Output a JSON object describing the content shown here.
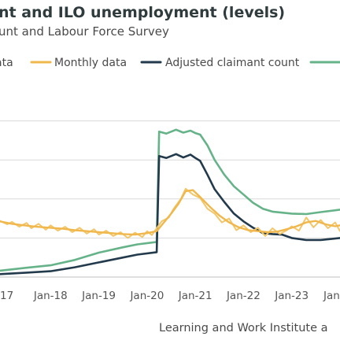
{
  "colors": {
    "weekly": "#f2c66b",
    "monthly": "#f0b84c",
    "adjusted": "#223a4b",
    "ilo": "#66b38a",
    "grid": "#d9d9d9",
    "axis": "#bfbfbf"
  },
  "chart_data": {
    "type": "line",
    "title": "nt and ILO unemployment (levels)",
    "subtitle": "unt and Labour Force Survey",
    "source": "Learning and Work Institute a",
    "legend_position": "top",
    "grid": true,
    "x_tick_labels": [
      "17",
      "Jan-18",
      "Jan-19",
      "Jan-20",
      "Jan-21",
      "Jan-22",
      "Jan-23",
      "Jan"
    ],
    "x_tick_values": [
      2017.0,
      2018.0,
      2019.0,
      2020.0,
      2021.0,
      2022.0,
      2023.0,
      2024.0
    ],
    "xlim": [
      2016.95,
      2024.0
    ],
    "ylim": [
      0.4,
      2.4
    ],
    "y_gridlines": [
      0.8,
      1.2,
      1.6,
      2.0
    ],
    "legend": [
      {
        "label": "ata",
        "key": "weekly"
      },
      {
        "label": "Monthly data",
        "key": "monthly"
      },
      {
        "label": "Adjusted claimant count",
        "key": "adjusted"
      },
      {
        "label": "",
        "key": "ilo"
      }
    ],
    "series": [
      {
        "key": "ilo",
        "x": [
          2016.95,
          2017.5,
          2018.0,
          2018.5,
          2019.0,
          2019.5,
          2019.8,
          2020.2,
          2020.25,
          2020.4,
          2020.6,
          2020.75,
          2020.9,
          2021.0,
          2021.1,
          2021.25,
          2021.4,
          2021.6,
          2021.8,
          2022.0,
          2022.2,
          2022.4,
          2022.6,
          2022.8,
          2023.0,
          2023.3,
          2023.6,
          2024.0
        ],
        "y": [
          0.465,
          0.495,
          0.52,
          0.575,
          0.65,
          0.705,
          0.735,
          0.76,
          1.89,
          1.87,
          1.91,
          1.88,
          1.9,
          1.875,
          1.86,
          1.75,
          1.6,
          1.45,
          1.33,
          1.245,
          1.16,
          1.1,
          1.07,
          1.06,
          1.05,
          1.045,
          1.065,
          1.09
        ]
      },
      {
        "key": "adjusted",
        "x": [
          2016.95,
          2017.5,
          2018.0,
          2018.5,
          2019.0,
          2019.5,
          2019.8,
          2020.2,
          2020.25,
          2020.4,
          2020.6,
          2020.75,
          2020.9,
          2021.0,
          2021.1,
          2021.25,
          2021.4,
          2021.6,
          2021.8,
          2022.0,
          2022.2,
          2022.4,
          2022.6,
          2022.8,
          2023.0,
          2023.3,
          2023.6,
          2024.0
        ],
        "y": [
          0.43,
          0.445,
          0.46,
          0.5,
          0.55,
          0.6,
          0.63,
          0.655,
          1.64,
          1.62,
          1.66,
          1.625,
          1.655,
          1.62,
          1.59,
          1.45,
          1.3,
          1.17,
          1.05,
          0.97,
          0.905,
          0.85,
          0.84,
          0.835,
          0.8,
          0.78,
          0.78,
          0.8
        ]
      },
      {
        "key": "weekly",
        "x": [
          2016.95,
          2017.1,
          2017.2,
          2017.35,
          2017.5,
          2017.6,
          2017.75,
          2017.9,
          2018.0,
          2018.15,
          2018.3,
          2018.45,
          2018.6,
          2018.75,
          2018.9,
          2019.0,
          2019.15,
          2019.3,
          2019.45,
          2019.6,
          2019.75,
          2019.9,
          2020.0,
          2020.1,
          2020.2,
          2020.3,
          2020.45,
          2020.55,
          2020.7,
          2020.8,
          2020.95,
          2021.1,
          2021.25,
          2021.4,
          2021.55,
          2021.7,
          2021.85,
          2022.0,
          2022.15,
          2022.3,
          2022.45,
          2022.6,
          2022.75,
          2022.9,
          2023.0,
          2023.15,
          2023.3,
          2023.45,
          2023.6,
          2023.75,
          2023.9,
          2024.0
        ],
        "y": [
          0.975,
          0.94,
          0.965,
          0.915,
          0.955,
          0.9,
          0.945,
          0.885,
          0.93,
          0.875,
          0.915,
          0.86,
          0.905,
          0.845,
          0.89,
          0.835,
          0.875,
          0.82,
          0.86,
          0.8,
          0.855,
          0.81,
          0.87,
          0.83,
          0.9,
          0.97,
          1.01,
          1.1,
          1.2,
          1.305,
          1.245,
          1.21,
          1.1,
          1.05,
          0.96,
          1.0,
          0.88,
          0.93,
          0.86,
          0.905,
          0.82,
          0.9,
          0.84,
          0.88,
          0.92,
          0.875,
          1.01,
          0.91,
          0.985,
          0.9,
          0.96,
          0.87
        ]
      },
      {
        "key": "monthly",
        "x": [
          2016.95,
          2017.2,
          2017.45,
          2017.7,
          2018.0,
          2018.25,
          2018.5,
          2018.75,
          2019.0,
          2019.25,
          2019.5,
          2019.75,
          2020.0,
          2020.2,
          2020.35,
          2020.5,
          2020.65,
          2020.8,
          2020.95,
          2021.1,
          2021.3,
          2021.5,
          2021.7,
          2021.9,
          2022.1,
          2022.3,
          2022.5,
          2022.7,
          2022.9,
          2023.1,
          2023.3,
          2023.5,
          2023.7,
          2023.9,
          2024.0
        ],
        "y": [
          0.97,
          0.945,
          0.93,
          0.915,
          0.905,
          0.895,
          0.88,
          0.87,
          0.86,
          0.85,
          0.84,
          0.835,
          0.85,
          0.87,
          0.96,
          1.05,
          1.15,
          1.28,
          1.29,
          1.22,
          1.12,
          1.03,
          0.96,
          0.91,
          0.88,
          0.87,
          0.86,
          0.865,
          0.89,
          0.92,
          0.96,
          0.975,
          0.94,
          0.92,
          0.93
        ]
      }
    ]
  }
}
